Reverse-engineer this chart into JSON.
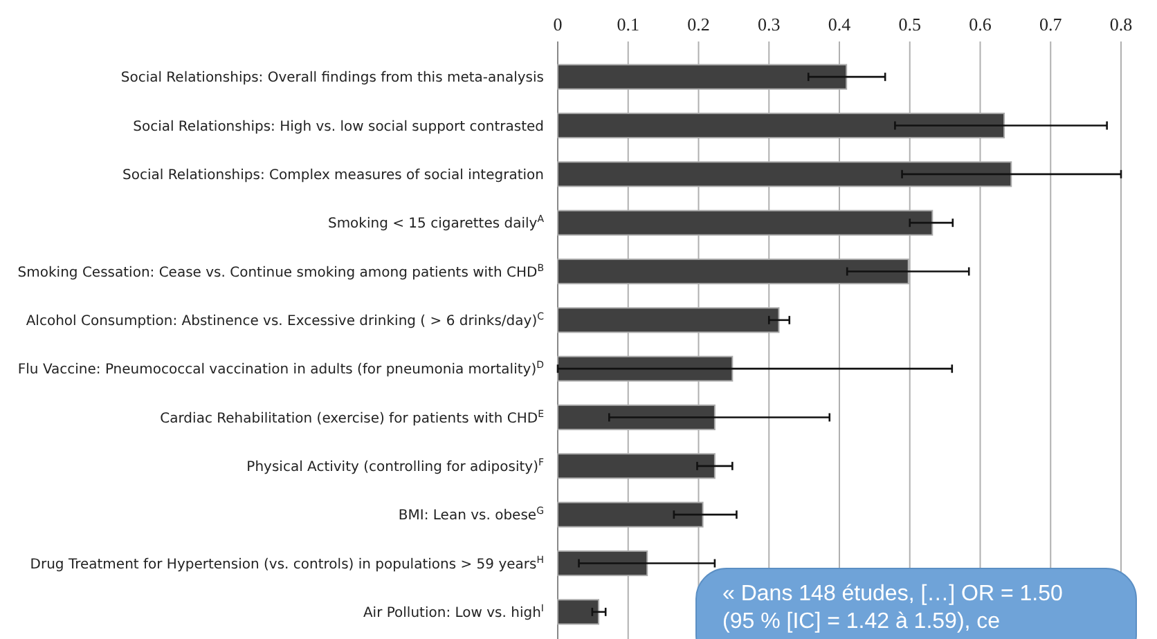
{
  "chart_data": {
    "type": "bar",
    "orientation": "horizontal",
    "categories": [
      "Social Relationships: Overall findings from this meta-analysis",
      "Social Relationships: High vs. low social support contrasted",
      "Social Relationships: Complex measures of social integration",
      "Smoking < 15 cigarettes daily$^{A}$",
      "Smoking Cessation: Cease vs. Continue smoking among patients with CHD$^{B}$",
      "Alcohol Consumption: Abstinence vs. Excessive drinking ( > 6 drinks/day)$^{C}$",
      "Flu Vaccine: Pneumococcal vaccination in adults (for pneumonia mortality)$^{D}$",
      "Cardiac Rehabilitation (exercise) for patients with CHD$^{E}$",
      "Physical Activity (controlling for adiposity)$^{F}$",
      "BMI: Lean vs. obese$^{G}$",
      "Drug Treatment for Hypertension (vs. controls) in populations > 59 years$^{H}$",
      "Air Pollution: Low vs. high$^{I}$"
    ],
    "values": [
      0.41,
      0.634,
      0.644,
      0.532,
      0.498,
      0.314,
      0.248,
      0.223,
      0.223,
      0.206,
      0.127,
      0.058
    ],
    "errors": [
      [
        0.356,
        0.465
      ],
      [
        0.479,
        0.78
      ],
      [
        0.489,
        0.8
      ],
      [
        0.5,
        0.561
      ],
      [
        0.411,
        0.584
      ],
      [
        0.3,
        0.329
      ],
      [
        0,
        0.56
      ],
      [
        0.073,
        0.386
      ],
      [
        0.198,
        0.248
      ],
      [
        0.165,
        0.254
      ],
      [
        0.03,
        0.223
      ],
      [
        0.049,
        0.068
      ]
    ],
    "color": "#404040",
    "xlim": [
      0,
      0.8
    ],
    "xticks": [
      0,
      0.1,
      0.2,
      0.3,
      0.4,
      0.5,
      0.6,
      0.7,
      0.8
    ],
    "grid": "x",
    "annotations": [
      "« Dans 148 études, […] OR = 1.50 (95 % [IC] = 1.42 à 1.59), ce"
    ]
  }
}
